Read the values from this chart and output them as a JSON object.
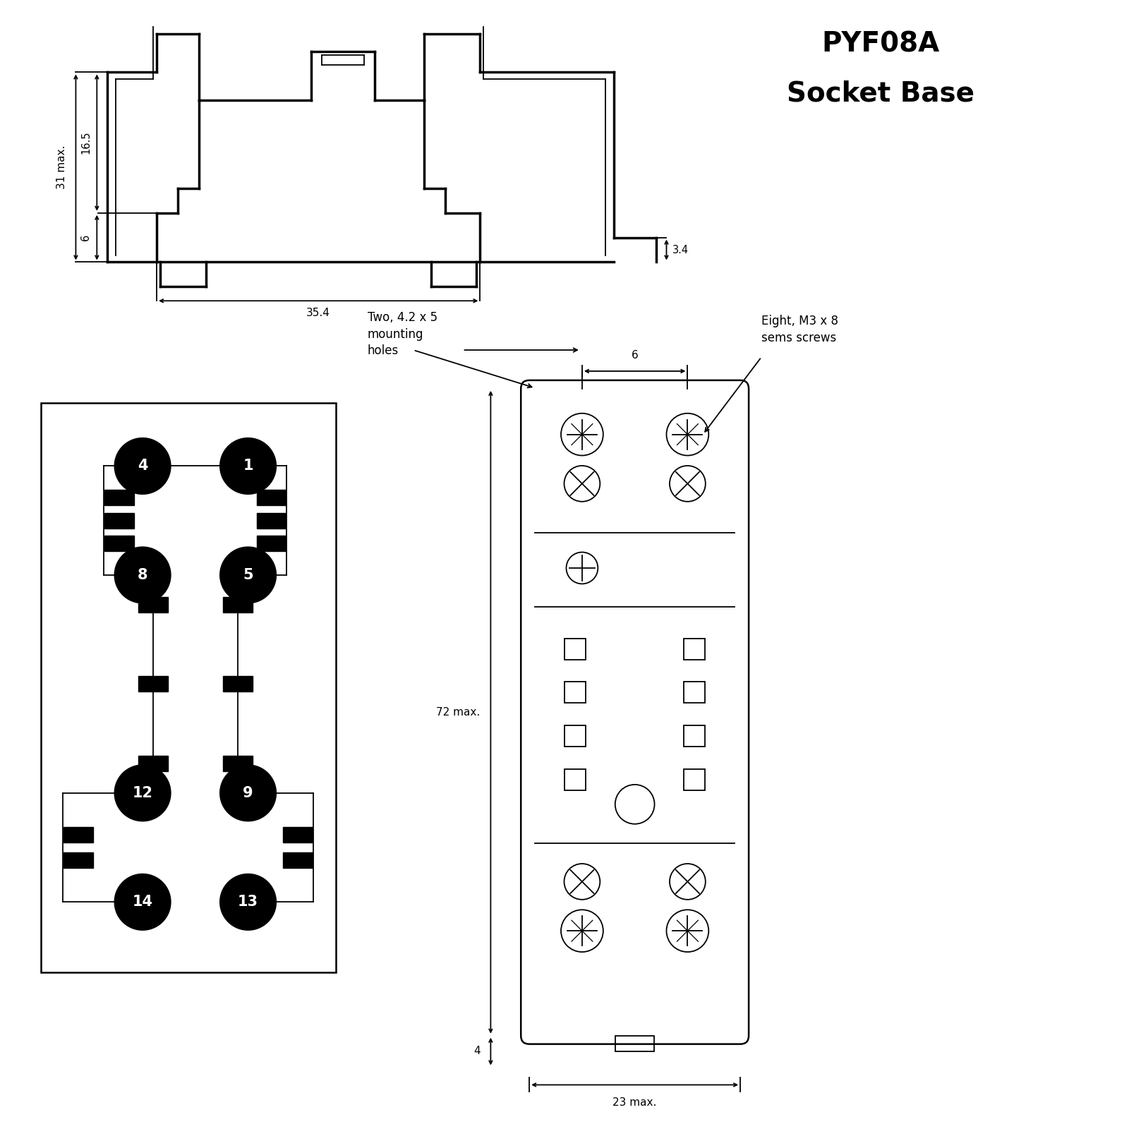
{
  "bg_color": "#ffffff",
  "line_color": "#000000",
  "title_line1": "PYF08A",
  "title_line2": "Socket Base",
  "dim_31": "31 max.",
  "dim_16_5": "16.5",
  "dim_6": "6",
  "dim_3_4": "3.4",
  "dim_35_4": "35.4",
  "dim_6_hole": "6",
  "dim_72": "72 max.",
  "dim_4": "4",
  "dim_23": "23 max.",
  "note_holes": "Two, 4.2 x 5\nmounting\nholes",
  "note_screws": "Eight, M3 x 8\nsems screws",
  "left_pins": [
    "4",
    "8",
    "12",
    "14"
  ],
  "right_pins": [
    "1",
    "5",
    "9",
    "13"
  ]
}
